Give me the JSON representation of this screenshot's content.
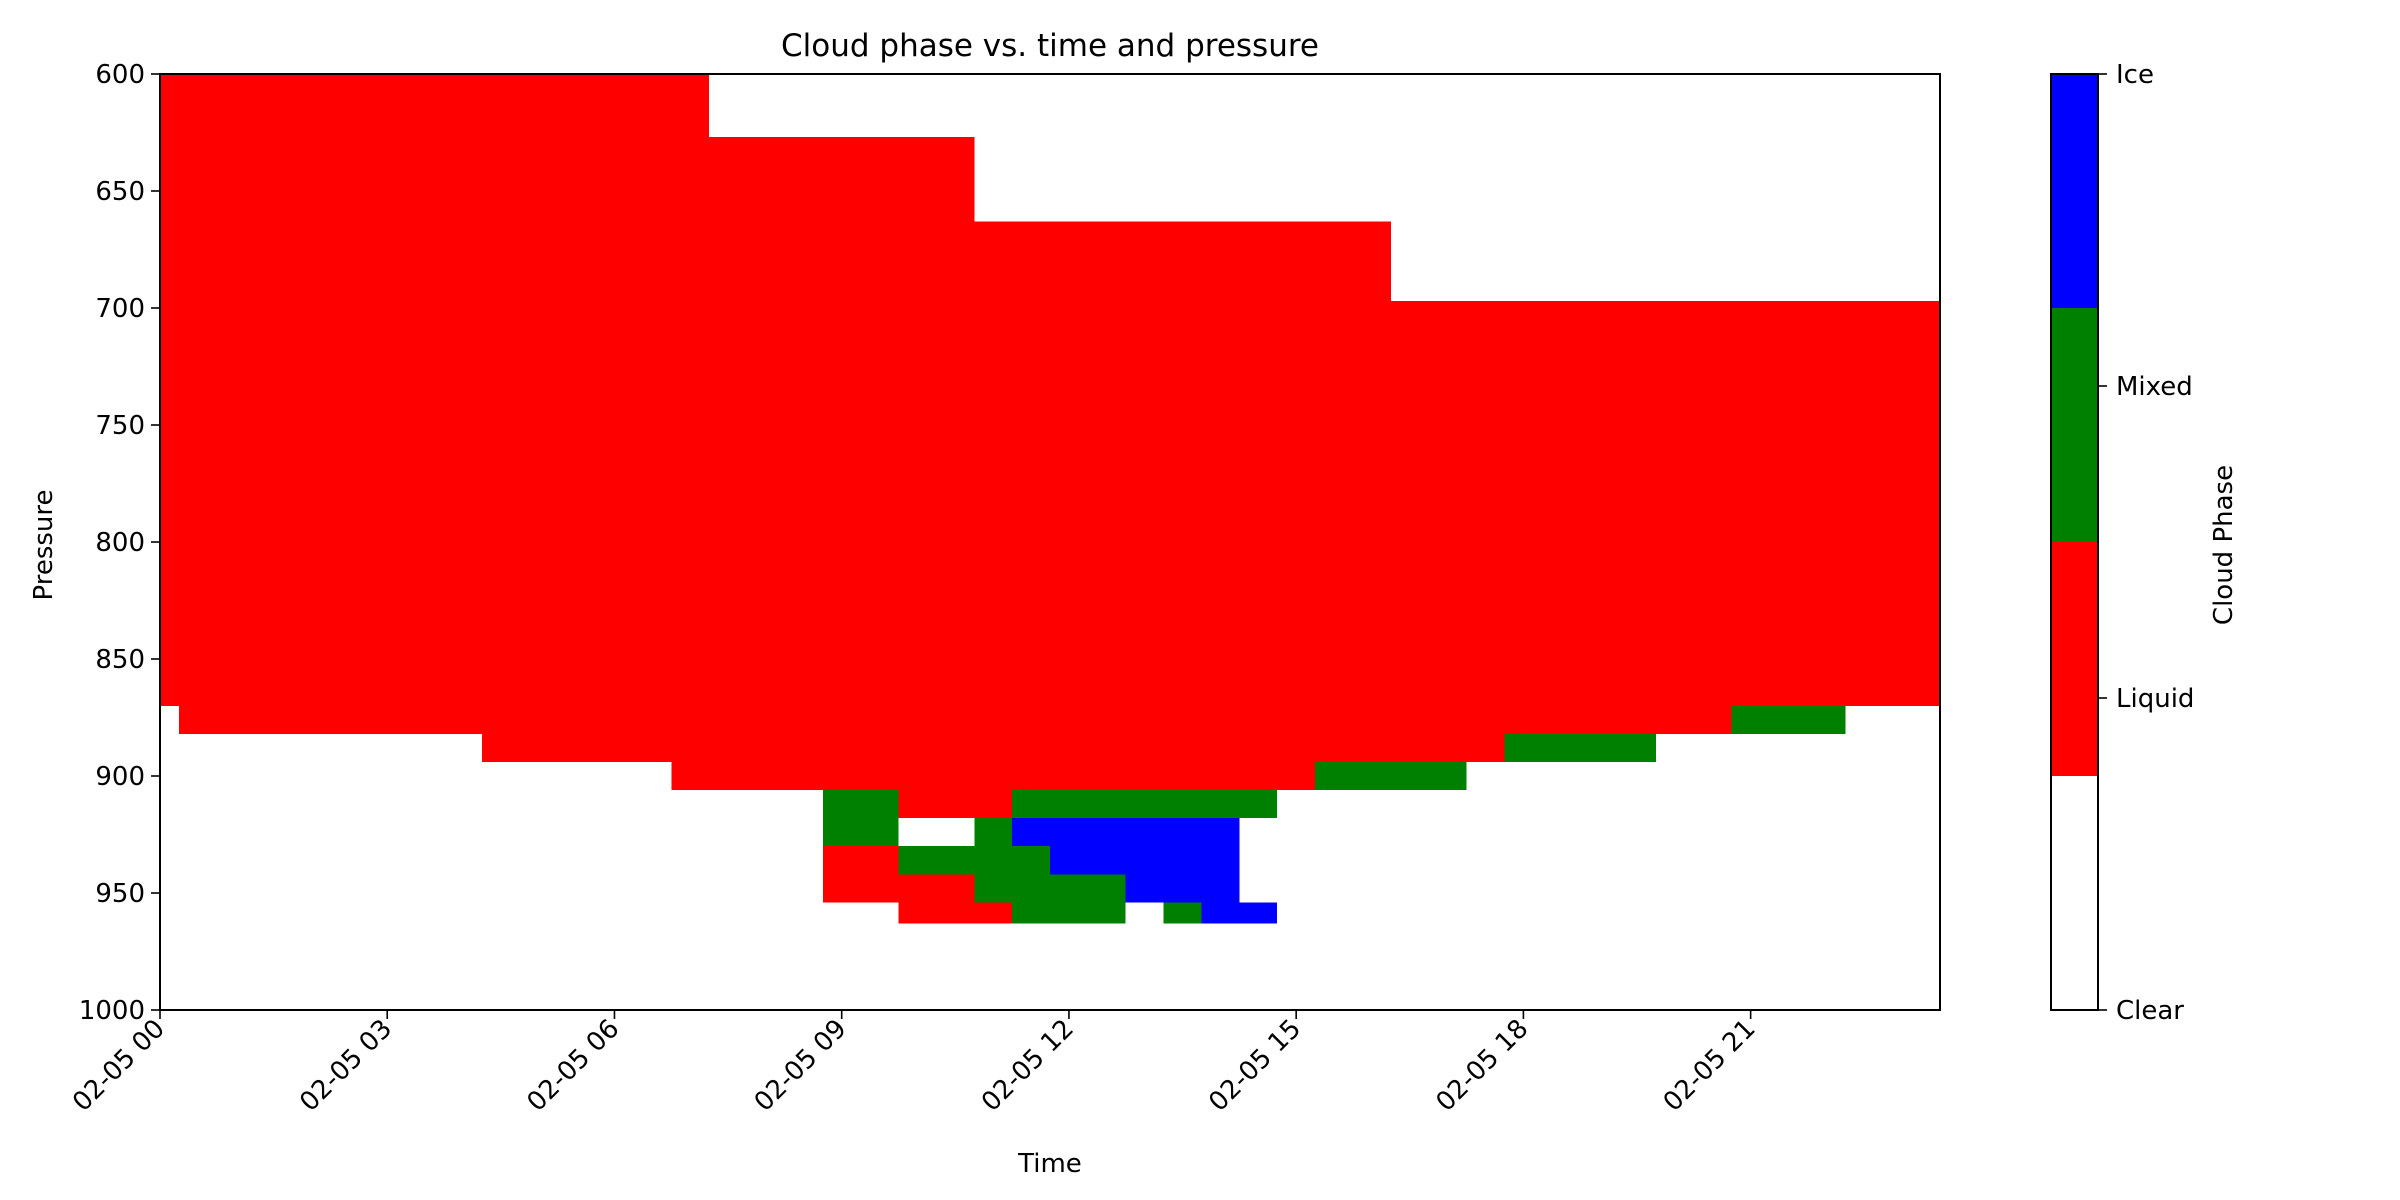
{
  "chart_data": {
    "type": "heatmap",
    "title": "Cloud phase vs. time and pressure",
    "xlabel": "Time",
    "ylabel": "Pressure",
    "xlim": [
      0,
      23.5
    ],
    "ylim": [
      1000,
      600
    ],
    "x_ticks": [
      {
        "value": 0,
        "label": "02-05 00"
      },
      {
        "value": 3,
        "label": "02-05 03"
      },
      {
        "value": 6,
        "label": "02-05 06"
      },
      {
        "value": 9,
        "label": "02-05 09"
      },
      {
        "value": 12,
        "label": "02-05 12"
      },
      {
        "value": 15,
        "label": "02-05 15"
      },
      {
        "value": 18,
        "label": "02-05 18"
      },
      {
        "value": 21,
        "label": "02-05 21"
      }
    ],
    "y_ticks": [
      600,
      650,
      700,
      750,
      800,
      850,
      900,
      950,
      1000
    ],
    "colorbar": {
      "label": "Cloud Phase",
      "categories": [
        {
          "name": "Clear",
          "color": "#ffffff"
        },
        {
          "name": "Liquid",
          "color": "#ff0000"
        },
        {
          "name": "Mixed",
          "color": "#008000"
        },
        {
          "name": "Ice",
          "color": "#0000ff"
        }
      ]
    },
    "cells": [
      {
        "phase": "Liquid",
        "t0": 0,
        "t1": 7.25,
        "p0": 600,
        "p1": 870
      },
      {
        "phase": "Liquid",
        "t0": 0.25,
        "t1": 7.25,
        "p0": 870,
        "p1": 882
      },
      {
        "phase": "Liquid",
        "t0": 4.25,
        "t1": 7.25,
        "p0": 882,
        "p1": 894
      },
      {
        "phase": "Liquid",
        "t0": 7.25,
        "t1": 10.75,
        "p0": 627,
        "p1": 894
      },
      {
        "phase": "Liquid",
        "t0": 6.75,
        "t1": 10.75,
        "p0": 894,
        "p1": 906
      },
      {
        "phase": "Liquid",
        "t0": 10.75,
        "t1": 16.25,
        "p0": 663,
        "p1": 906
      },
      {
        "phase": "Liquid",
        "t0": 16.25,
        "t1": 23.5,
        "p0": 697,
        "p1": 870
      },
      {
        "phase": "Liquid",
        "t0": 16.25,
        "t1": 20.75,
        "p0": 870,
        "p1": 882
      },
      {
        "phase": "Liquid",
        "t0": 20.75,
        "t1": 22.25,
        "p0": 870,
        "p1": 870
      },
      {
        "phase": "Liquid",
        "t0": 16.25,
        "t1": 17.75,
        "p0": 882,
        "p1": 894
      },
      {
        "phase": "Liquid",
        "t0": 16.25,
        "t1": 17.25,
        "p0": 894,
        "p1": 906
      },
      {
        "phase": "Liquid",
        "t0": 15.25,
        "t1": 16.25,
        "p0": 894,
        "p1": 894
      },
      {
        "phase": "Liquid",
        "t0": 9.75,
        "t1": 11.25,
        "p0": 906,
        "p1": 918
      },
      {
        "phase": "Liquid",
        "t0": 11.25,
        "t1": 15.25,
        "p0": 906,
        "p1": 906
      },
      {
        "phase": "Mixed",
        "t0": 8.75,
        "t1": 9.75,
        "p0": 906,
        "p1": 930
      },
      {
        "phase": "Mixed",
        "t0": 11.25,
        "t1": 14.75,
        "p0": 906,
        "p1": 918
      },
      {
        "phase": "Mixed",
        "t0": 15.25,
        "t1": 17.25,
        "p0": 894,
        "p1": 906
      },
      {
        "phase": "Mixed",
        "t0": 17.75,
        "t1": 19.75,
        "p0": 882,
        "p1": 894
      },
      {
        "phase": "Mixed",
        "t0": 20.75,
        "t1": 22.25,
        "p0": 870,
        "p1": 882
      },
      {
        "phase": "Mixed",
        "t0": 10.75,
        "t1": 11.25,
        "p0": 918,
        "p1": 930
      },
      {
        "phase": "Ice",
        "t0": 11.25,
        "t1": 14.25,
        "p0": 918,
        "p1": 930
      },
      {
        "phase": "Mixed",
        "t0": 9.75,
        "t1": 11.75,
        "p0": 930,
        "p1": 942
      },
      {
        "phase": "Ice",
        "t0": 11.75,
        "t1": 14.25,
        "p0": 930,
        "p1": 942
      },
      {
        "phase": "Liquid",
        "t0": 8.75,
        "t1": 9.75,
        "p0": 930,
        "p1": 954
      },
      {
        "phase": "Liquid",
        "t0": 9.75,
        "t1": 10.75,
        "p0": 942,
        "p1": 954
      },
      {
        "phase": "Mixed",
        "t0": 10.75,
        "t1": 12.75,
        "p0": 942,
        "p1": 954
      },
      {
        "phase": "Ice",
        "t0": 12.75,
        "t1": 14.25,
        "p0": 942,
        "p1": 954
      },
      {
        "phase": "Liquid",
        "t0": 9.75,
        "t1": 11.25,
        "p0": 954,
        "p1": 963
      },
      {
        "phase": "Mixed",
        "t0": 11.25,
        "t1": 12.75,
        "p0": 954,
        "p1": 963
      },
      {
        "phase": "Mixed",
        "t0": 13.25,
        "t1": 13.75,
        "p0": 954,
        "p1": 963
      },
      {
        "phase": "Ice",
        "t0": 13.75,
        "t1": 14.75,
        "p0": 954,
        "p1": 963
      }
    ]
  }
}
